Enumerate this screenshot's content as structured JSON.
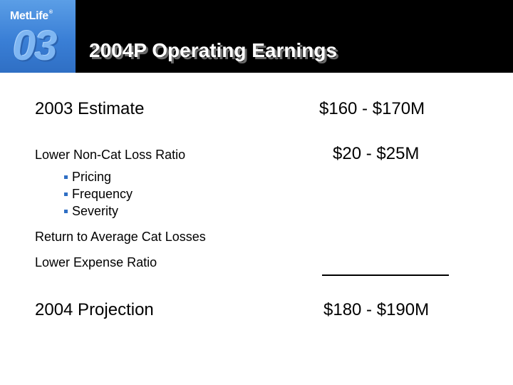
{
  "header": {
    "brand": "MetLife",
    "brand_mark": "®",
    "year_badge": "03",
    "title": "2004P Operating Earnings"
  },
  "rows": {
    "estimate": {
      "label": "2003 Estimate",
      "value": "$160 - $170M"
    },
    "noncat": {
      "label": "Lower Non-Cat Loss Ratio",
      "value": "$20 - $25M",
      "bullets": [
        "Pricing",
        "Frequency",
        "Severity"
      ]
    },
    "cat": {
      "label": "Return to Average Cat Losses"
    },
    "expense": {
      "label": "Lower Expense Ratio"
    },
    "projection": {
      "label": "2004 Projection",
      "value": "$180 - $190M"
    }
  },
  "colors": {
    "header_bg": "#000000",
    "logo_blue": "#3a7fd6",
    "bullet": "#2f6fc4"
  }
}
